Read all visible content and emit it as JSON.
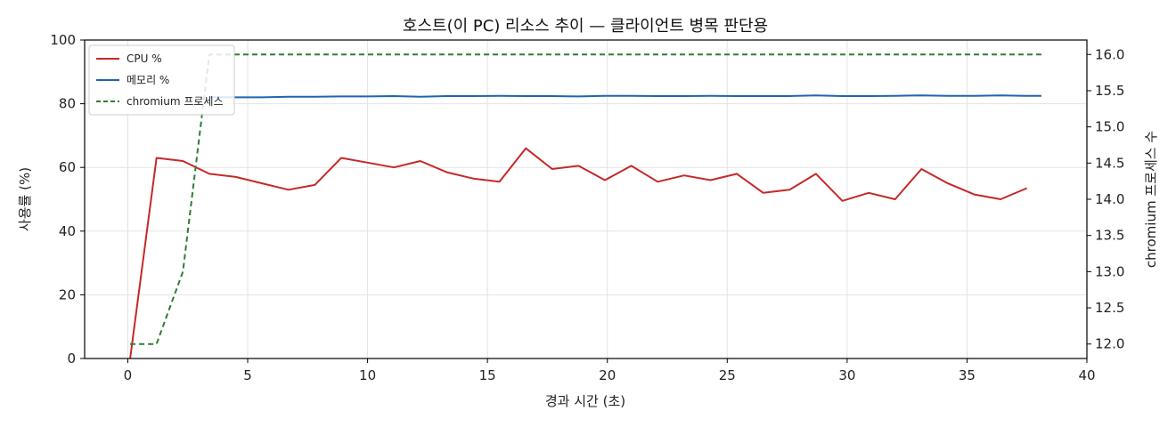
{
  "chart_data": {
    "type": "line",
    "title": "호스트(이 PC) 리소스 추이 — 클라이언트 병목 판단용",
    "xlabel": "경과 시간 (초)",
    "ylabel": "사용률 (%)",
    "y2label": "chromium 프로세스 수",
    "xlim": [
      -1.8,
      40
    ],
    "ylim": [
      0,
      100
    ],
    "y2lim": [
      11.8,
      16.2
    ],
    "x_ticks": [
      0,
      5,
      10,
      15,
      20,
      25,
      30,
      35,
      40
    ],
    "y_ticks": [
      0,
      20,
      40,
      60,
      80,
      100
    ],
    "y2_ticks": [
      12.0,
      12.5,
      13.0,
      13.5,
      14.0,
      14.5,
      15.0,
      15.5,
      16.0
    ],
    "x_tick_labels": [
      "0",
      "5",
      "10",
      "15",
      "20",
      "25",
      "30",
      "35",
      "40"
    ],
    "y_tick_labels": [
      "0",
      "20",
      "40",
      "60",
      "80",
      "100"
    ],
    "y2_tick_labels": [
      "12.0",
      "12.5",
      "13.0",
      "13.5",
      "14.0",
      "14.5",
      "15.0",
      "15.5",
      "16.0"
    ],
    "grid": true,
    "legend_position": "top-left",
    "series": [
      {
        "name": "CPU %",
        "axis": "left",
        "color": "#c62828",
        "dash": "solid",
        "x": [
          0.1,
          1.2,
          2.3,
          3.4,
          4.5,
          5.6,
          6.7,
          7.8,
          8.9,
          10.0,
          11.1,
          12.2,
          13.3,
          14.4,
          15.5,
          16.6,
          17.7,
          18.8,
          19.9,
          21.0,
          22.1,
          23.2,
          24.3,
          25.4,
          26.5,
          27.6,
          28.7,
          29.8,
          30.9,
          32.0,
          33.1,
          34.2,
          35.3,
          36.4,
          37.5
        ],
        "values": [
          0,
          63,
          62,
          58,
          57,
          55,
          53,
          54.5,
          63,
          61.5,
          60,
          62,
          58.5,
          56.5,
          55.5,
          66,
          59.5,
          60.5,
          56,
          60.5,
          55.5,
          57.5,
          56,
          58,
          52,
          53,
          58,
          49.5,
          52,
          50,
          59.5,
          55,
          51.5,
          50,
          53.5
        ]
      },
      {
        "name": "메모리 %",
        "axis": "left",
        "color": "#1e64b4",
        "dash": "solid",
        "x": [
          3.4,
          4.5,
          5.6,
          6.7,
          7.8,
          8.9,
          10.0,
          11.1,
          12.2,
          13.3,
          14.4,
          15.5,
          16.6,
          17.7,
          18.8,
          19.9,
          21.0,
          22.1,
          23.2,
          24.3,
          25.4,
          26.5,
          27.6,
          28.7,
          29.8,
          30.9,
          32.0,
          33.1,
          34.2,
          35.3,
          36.4,
          37.5,
          38.1
        ],
        "values": [
          82.0,
          82.0,
          82.0,
          82.2,
          82.2,
          82.3,
          82.3,
          82.4,
          82.2,
          82.4,
          82.4,
          82.5,
          82.4,
          82.4,
          82.3,
          82.5,
          82.5,
          82.4,
          82.4,
          82.5,
          82.4,
          82.4,
          82.4,
          82.6,
          82.4,
          82.4,
          82.5,
          82.6,
          82.5,
          82.5,
          82.6,
          82.5,
          82.5
        ]
      },
      {
        "name": "chromium 프로세스",
        "axis": "right",
        "color": "#2e7d32",
        "dash": "dashed",
        "x": [
          0.1,
          1.2,
          2.3,
          3.4,
          4.5,
          38.1
        ],
        "values": [
          12.0,
          12.0,
          13.0,
          16.0,
          16.0,
          16.0
        ]
      }
    ]
  }
}
